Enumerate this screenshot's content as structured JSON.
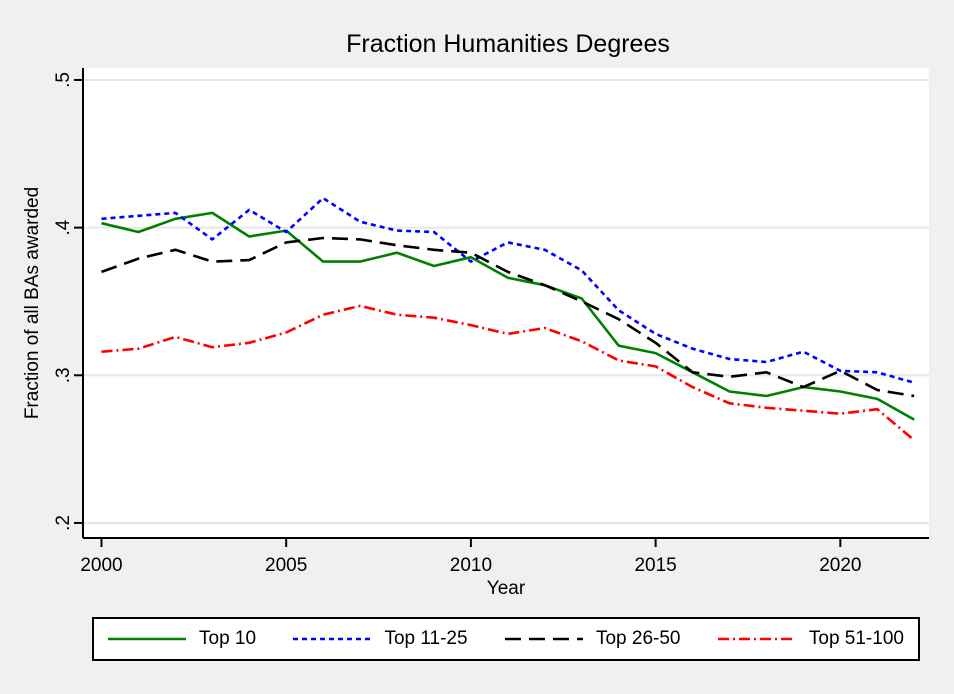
{
  "chart_data": {
    "type": "line",
    "title": "Fraction Humanities Degrees",
    "xlabel": "Year",
    "ylabel": "Fraction of all BAs awarded",
    "x": [
      2000,
      2001,
      2002,
      2003,
      2004,
      2005,
      2006,
      2007,
      2008,
      2009,
      2010,
      2011,
      2012,
      2013,
      2014,
      2015,
      2016,
      2017,
      2018,
      2019,
      2020,
      2021,
      2022
    ],
    "series": [
      {
        "name": "Top 10",
        "color": "#008000",
        "line_style": "solid",
        "values": [
          0.403,
          0.397,
          0.406,
          0.41,
          0.394,
          0.398,
          0.377,
          0.377,
          0.383,
          0.374,
          0.38,
          0.366,
          0.361,
          0.352,
          0.32,
          0.315,
          0.302,
          0.289,
          0.286,
          0.292,
          0.289,
          0.284,
          0.27
        ]
      },
      {
        "name": "Top 11-25",
        "color": "#0000ff",
        "line_style": "short-dash",
        "values": [
          0.406,
          0.408,
          0.41,
          0.392,
          0.412,
          0.397,
          0.42,
          0.404,
          0.398,
          0.397,
          0.377,
          0.39,
          0.385,
          0.371,
          0.344,
          0.328,
          0.318,
          0.311,
          0.309,
          0.316,
          0.303,
          0.302,
          0.295
        ]
      },
      {
        "name": "Top 26-50",
        "color": "#000000",
        "line_style": "long-dash",
        "values": [
          0.37,
          0.379,
          0.385,
          0.377,
          0.378,
          0.39,
          0.393,
          0.392,
          0.388,
          0.385,
          0.383,
          0.37,
          0.361,
          0.35,
          0.338,
          0.322,
          0.302,
          0.299,
          0.302,
          0.292,
          0.303,
          0.29,
          0.286
        ]
      },
      {
        "name": "Top 51-100",
        "color": "#ff0000",
        "line_style": "dash-dot",
        "values": [
          0.316,
          0.318,
          0.326,
          0.319,
          0.322,
          0.329,
          0.341,
          0.347,
          0.341,
          0.339,
          0.334,
          0.328,
          0.332,
          0.323,
          0.31,
          0.306,
          0.292,
          0.281,
          0.278,
          0.276,
          0.274,
          0.277,
          0.256
        ]
      }
    ],
    "xticks": {
      "values": [
        2000,
        2005,
        2010,
        2015,
        2020
      ],
      "labels": [
        "2000",
        "2005",
        "2010",
        "2015",
        "2020"
      ]
    },
    "yticks": {
      "values": [
        0.2,
        0.3,
        0.4,
        0.5
      ],
      "labels": [
        ".2",
        ".3",
        ".4",
        ".5"
      ]
    },
    "xlim": [
      1999.5,
      2022.4
    ],
    "ylim": [
      0.1898,
      0.5081
    ],
    "grid": "horizontal",
    "legend_position": "bottom",
    "colors": {
      "background": "#f0f0f0",
      "plot_background": "#ffffff",
      "gridline": "#e6e6e6",
      "axis": "#000000"
    }
  }
}
